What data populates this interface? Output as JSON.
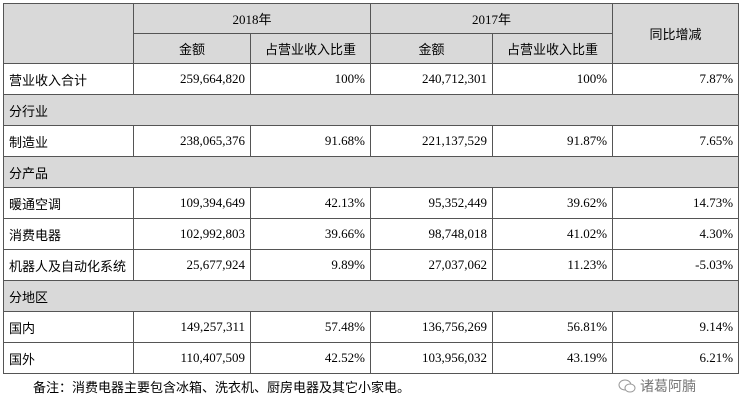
{
  "table": {
    "header": {
      "years": [
        "2018年",
        "2017年"
      ],
      "yoy": "同比增减",
      "sub": [
        "金额",
        "占营业收入比重",
        "金额",
        "占营业收入比重"
      ]
    },
    "rows": [
      {
        "label": "营业收入合计",
        "cells": [
          "259,664,820",
          "100%",
          "240,712,301",
          "100%",
          "7.87%"
        ]
      },
      {
        "section": "分行业"
      },
      {
        "label": "制造业",
        "cells": [
          "238,065,376",
          "91.68%",
          "221,137,529",
          "91.87%",
          "7.65%"
        ]
      },
      {
        "section": "分产品"
      },
      {
        "label": "暖通空调",
        "cells": [
          "109,394,649",
          "42.13%",
          "95,352,449",
          "39.62%",
          "14.73%"
        ]
      },
      {
        "label": "消费电器",
        "cells": [
          "102,992,803",
          "39.66%",
          "98,748,018",
          "41.02%",
          "4.30%"
        ]
      },
      {
        "label": "机器人及自动化系统",
        "cells": [
          "25,677,924",
          "9.89%",
          "27,037,062",
          "11.23%",
          "-5.03%"
        ]
      },
      {
        "section": "分地区"
      },
      {
        "label": "国内",
        "cells": [
          "149,257,311",
          "57.48%",
          "136,756,269",
          "56.81%",
          "9.14%"
        ]
      },
      {
        "label": "国外",
        "cells": [
          "110,407,509",
          "42.52%",
          "103,956,032",
          "43.19%",
          "6.21%"
        ]
      }
    ]
  },
  "note": "备注：消费电器主要包含冰箱、洗衣机、厨房电器及其它小家电。",
  "watermark": "诸葛阿腩"
}
